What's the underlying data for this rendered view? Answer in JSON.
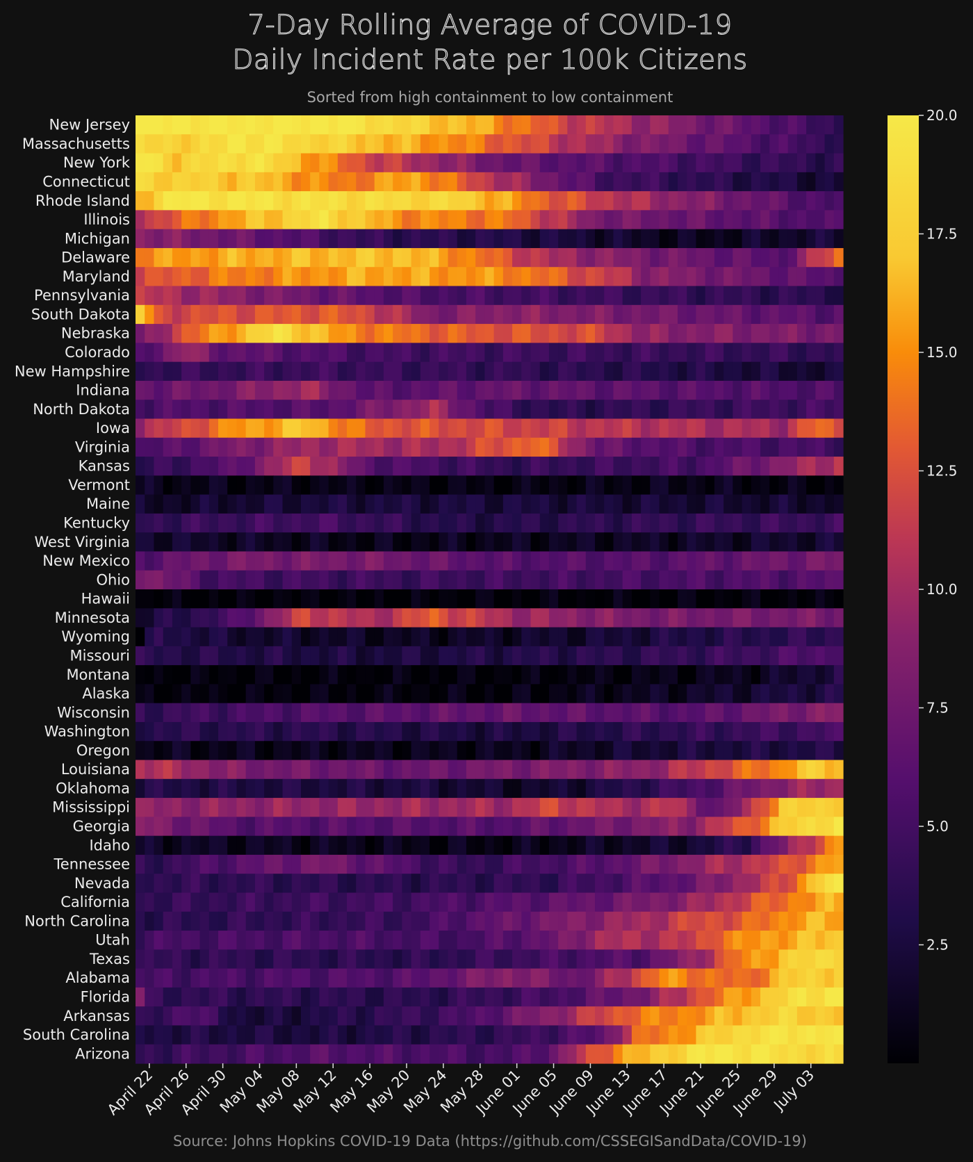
{
  "chart_data": {
    "type": "heatmap",
    "title": [
      "7-Day Rolling Average of COVID-19",
      "Daily Incident Rate per 100k Citizens"
    ],
    "subtitle": "Sorted from high containment to low containment",
    "source": "Source: Johns Hopkins COVID-19 Data (https://github.com/CSSEGISandData/COVID-19)",
    "colorscale": "inferno-like",
    "zmin": 0,
    "zmax": 20,
    "colorbar_ticks": [
      2.5,
      5.0,
      7.5,
      10.0,
      12.5,
      15.0,
      17.5,
      20.0
    ],
    "colorbar_tick_labels": [
      "2.5",
      "5.0",
      "7.5",
      "10.0",
      "12.5",
      "15.0",
      "17.5",
      "20.0"
    ],
    "x_start_date": "2020-04-21",
    "x_count": 77,
    "x_tick_labels": [
      "April 22",
      "April 26",
      "April 30",
      "May 04",
      "May 08",
      "May 12",
      "May 16",
      "May 20",
      "May 24",
      "May 28",
      "June 01",
      "June 05",
      "June 09",
      "June 13",
      "June 17",
      "June 21",
      "June 25",
      "June 29",
      "July 03"
    ],
    "x_tick_dates": [
      "2020-04-22",
      "2020-04-26",
      "2020-04-30",
      "2020-05-04",
      "2020-05-08",
      "2020-05-12",
      "2020-05-16",
      "2020-05-20",
      "2020-05-24",
      "2020-05-28",
      "2020-06-01",
      "2020-06-05",
      "2020-06-09",
      "2020-06-13",
      "2020-06-17",
      "2020-06-21",
      "2020-06-25",
      "2020-06-29",
      "2020-07-03"
    ],
    "x_tick_index": [
      1,
      5,
      9,
      13,
      17,
      21,
      25,
      29,
      33,
      37,
      41,
      45,
      49,
      53,
      57,
      61,
      65,
      69,
      73
    ],
    "rows": [
      {
        "state": "New Jersey",
        "keys": [
          0,
          20,
          22,
          20,
          37,
          16,
          46,
          12,
          76,
          4
        ]
      },
      {
        "state": "Massachusetts",
        "keys": [
          0,
          18,
          8,
          18,
          10,
          20,
          34,
          15,
          52,
          9,
          76,
          4
        ]
      },
      {
        "state": "New York",
        "keys": [
          0,
          20,
          4,
          17.5,
          12,
          19.5,
          25,
          12,
          40,
          7,
          76,
          3.5
        ]
      },
      {
        "state": "Connecticut",
        "keys": [
          0,
          18,
          12,
          17,
          22,
          14,
          30,
          16,
          40,
          10,
          50,
          5,
          76,
          2
        ]
      },
      {
        "state": "Rhode Island",
        "keys": [
          0,
          16,
          3,
          20,
          35,
          18,
          45,
          13,
          55,
          10,
          76,
          5
        ]
      },
      {
        "state": "Illinois",
        "keys": [
          0,
          11,
          8,
          15,
          20,
          19,
          28,
          15,
          40,
          14,
          50,
          8,
          76,
          5.5
        ]
      },
      {
        "state": "Michigan",
        "keys": [
          0,
          9,
          12,
          7,
          25,
          4,
          40,
          3,
          50,
          2,
          60,
          1,
          76,
          2.2
        ]
      },
      {
        "state": "Delaware",
        "keys": [
          0,
          15,
          10,
          16,
          28,
          17,
          35,
          15,
          45,
          10,
          55,
          8,
          70,
          6,
          73,
          10,
          76,
          14
        ]
      },
      {
        "state": "Maryland",
        "keys": [
          0,
          12,
          8,
          14,
          25,
          16,
          40,
          15,
          52,
          11,
          55,
          9,
          76,
          6
        ]
      },
      {
        "state": "Pennsylvania",
        "keys": [
          0,
          11,
          15,
          8,
          30,
          5.5,
          50,
          4.5,
          76,
          3.5
        ]
      },
      {
        "state": "South Dakota",
        "keys": [
          0,
          18,
          2,
          12,
          20,
          13,
          25,
          12,
          32,
          8,
          40,
          9,
          76,
          6
        ]
      },
      {
        "state": "Nebraska",
        "keys": [
          0,
          7,
          5,
          13,
          15,
          19,
          22,
          15,
          35,
          13,
          50,
          12,
          55,
          9,
          76,
          8
        ]
      },
      {
        "state": "Colorado",
        "keys": [
          0,
          5,
          5,
          10,
          8,
          7,
          25,
          5,
          76,
          4
        ]
      },
      {
        "state": "New Hampshire",
        "keys": [
          0,
          4,
          20,
          4.5,
          40,
          4,
          60,
          3,
          76,
          1.8
        ]
      },
      {
        "state": "Indiana",
        "keys": [
          0,
          7,
          8,
          7.5,
          18,
          10,
          25,
          6,
          40,
          7,
          76,
          5.5
        ]
      },
      {
        "state": "North Dakota",
        "keys": [
          0,
          5.5,
          20,
          6,
          32,
          10,
          38,
          5,
          45,
          3.5,
          76,
          5
        ]
      },
      {
        "state": "Iowa",
        "keys": [
          0,
          10,
          5,
          12,
          10,
          15,
          18,
          17,
          25,
          13,
          40,
          12,
          50,
          11,
          70,
          10,
          74,
          14,
          76,
          12
        ]
      },
      {
        "state": "Virginia",
        "keys": [
          0,
          5,
          10,
          8,
          20,
          10,
          32,
          10,
          43,
          14,
          50,
          7,
          60,
          5.5,
          76,
          5
        ]
      },
      {
        "state": "Kansas",
        "keys": [
          0,
          3.5,
          10,
          6,
          18,
          12,
          25,
          6,
          40,
          4,
          60,
          5,
          76,
          11
        ]
      },
      {
        "state": "Vermont",
        "keys": [
          0,
          1,
          40,
          0.5,
          60,
          1,
          76,
          0.3
        ]
      },
      {
        "state": "Maine",
        "keys": [
          0,
          1.5,
          20,
          2.5,
          40,
          2.5,
          76,
          1.8
        ]
      },
      {
        "state": "Kentucky",
        "keys": [
          0,
          4,
          20,
          5,
          35,
          3,
          55,
          4,
          76,
          4.5
        ]
      },
      {
        "state": "West Virginia",
        "keys": [
          0,
          2,
          25,
          0.8,
          45,
          1.2,
          60,
          1.5,
          76,
          2
        ]
      },
      {
        "state": "New Mexico",
        "keys": [
          0,
          6,
          10,
          8,
          25,
          8,
          40,
          6,
          55,
          6,
          76,
          8
        ]
      },
      {
        "state": "Ohio",
        "keys": [
          0,
          9,
          8,
          5,
          30,
          4.5,
          50,
          5,
          76,
          6
        ]
      },
      {
        "state": "Hawaii",
        "keys": [
          0,
          0.1,
          76,
          0.2
        ]
      },
      {
        "state": "Minnesota",
        "keys": [
          0,
          2,
          10,
          5,
          18,
          12,
          25,
          10,
          32,
          13,
          40,
          10,
          55,
          8,
          76,
          8
        ]
      },
      {
        "state": "Wyoming",
        "keys": [
          0,
          0.5,
          2,
          3.5,
          10,
          2,
          30,
          1.2,
          50,
          2,
          60,
          3,
          76,
          4
        ]
      },
      {
        "state": "Missouri",
        "keys": [
          0,
          3.5,
          25,
          2.5,
          50,
          3.5,
          65,
          4.5,
          76,
          6
        ]
      },
      {
        "state": "Montana",
        "keys": [
          0,
          0.2,
          40,
          0.2,
          60,
          0.8,
          70,
          1.5,
          76,
          3
        ]
      },
      {
        "state": "Alaska",
        "keys": [
          0,
          0.3,
          40,
          0.4,
          60,
          1.5,
          76,
          3
        ]
      },
      {
        "state": "Wisconsin",
        "keys": [
          0,
          4,
          20,
          6,
          40,
          7,
          60,
          6,
          76,
          9
        ]
      },
      {
        "state": "Washington",
        "keys": [
          0,
          3.5,
          20,
          3.5,
          40,
          2.5,
          60,
          4,
          76,
          5
        ]
      },
      {
        "state": "Oregon",
        "keys": [
          0,
          1,
          40,
          1,
          60,
          2.5,
          76,
          3
        ]
      },
      {
        "state": "Louisiana",
        "keys": [
          0,
          11,
          12,
          8,
          30,
          7,
          40,
          8,
          55,
          9,
          60,
          11,
          65,
          13,
          70,
          15,
          72,
          17,
          76,
          17
        ]
      },
      {
        "state": "Oklahoma",
        "keys": [
          0,
          3,
          30,
          2.5,
          42,
          1.5,
          50,
          2.5,
          60,
          5,
          70,
          9,
          76,
          10
        ]
      },
      {
        "state": "Mississippi",
        "keys": [
          0,
          9,
          20,
          9.5,
          40,
          10,
          45,
          12,
          52,
          10,
          58,
          11,
          63,
          6,
          66,
          10,
          70,
          17,
          76,
          18
        ]
      },
      {
        "state": "Georgia",
        "keys": [
          0,
          9,
          10,
          6,
          40,
          6,
          60,
          9,
          66,
          13,
          70,
          17,
          74,
          19,
          76,
          20
        ]
      },
      {
        "state": "Idaho",
        "keys": [
          0,
          1.5,
          40,
          0.7,
          60,
          2,
          66,
          4,
          70,
          8,
          74,
          13,
          76,
          15
        ]
      },
      {
        "state": "Tennessee",
        "keys": [
          0,
          3.5,
          10,
          6,
          20,
          8,
          35,
          4,
          50,
          6,
          60,
          9,
          70,
          12,
          74,
          15,
          76,
          16
        ]
      },
      {
        "state": "Nevada",
        "keys": [
          0,
          4,
          30,
          3.5,
          45,
          4,
          60,
          7,
          66,
          10,
          70,
          12,
          74,
          18,
          76,
          20
        ]
      },
      {
        "state": "California",
        "keys": [
          0,
          4,
          30,
          5,
          50,
          7,
          60,
          9,
          66,
          12,
          72,
          15,
          76,
          16
        ]
      },
      {
        "state": "North Carolina",
        "keys": [
          0,
          3.5,
          30,
          4.5,
          35,
          6,
          45,
          8,
          55,
          10,
          60,
          12,
          66,
          13,
          72,
          16,
          76,
          16
        ]
      },
      {
        "state": "Utah",
        "keys": [
          0,
          5,
          20,
          5.5,
          35,
          5,
          45,
          7,
          50,
          10,
          60,
          11,
          63,
          14,
          70,
          16,
          76,
          17
        ]
      },
      {
        "state": "Texas",
        "keys": [
          0,
          4,
          30,
          3.5,
          45,
          5,
          55,
          6,
          60,
          9,
          65,
          14,
          70,
          17,
          76,
          19
        ]
      },
      {
        "state": "Alabama",
        "keys": [
          0,
          5,
          30,
          6,
          40,
          9,
          48,
          7,
          53,
          11,
          57,
          15,
          62,
          14,
          66,
          13,
          70,
          17,
          76,
          18
        ]
      },
      {
        "state": "Florida",
        "keys": [
          0,
          9,
          1,
          4,
          30,
          3.5,
          45,
          5,
          55,
          8,
          60,
          12,
          66,
          16,
          72,
          19,
          76,
          20
        ]
      },
      {
        "state": "Arkansas",
        "keys": [
          0,
          3,
          5,
          6,
          12,
          2,
          20,
          3,
          35,
          5,
          45,
          9,
          54,
          14,
          60,
          15,
          66,
          17,
          70,
          18,
          76,
          17
        ]
      },
      {
        "state": "South Carolina",
        "keys": [
          0,
          3,
          20,
          2.5,
          40,
          4,
          50,
          6,
          54,
          13,
          60,
          16,
          66,
          19,
          76,
          20
        ]
      },
      {
        "state": "Arizona",
        "keys": [
          0,
          4,
          20,
          6,
          40,
          5,
          45,
          7,
          48,
          11,
          52,
          15,
          58,
          18,
          63,
          20,
          70,
          19,
          76,
          18
        ]
      }
    ]
  }
}
